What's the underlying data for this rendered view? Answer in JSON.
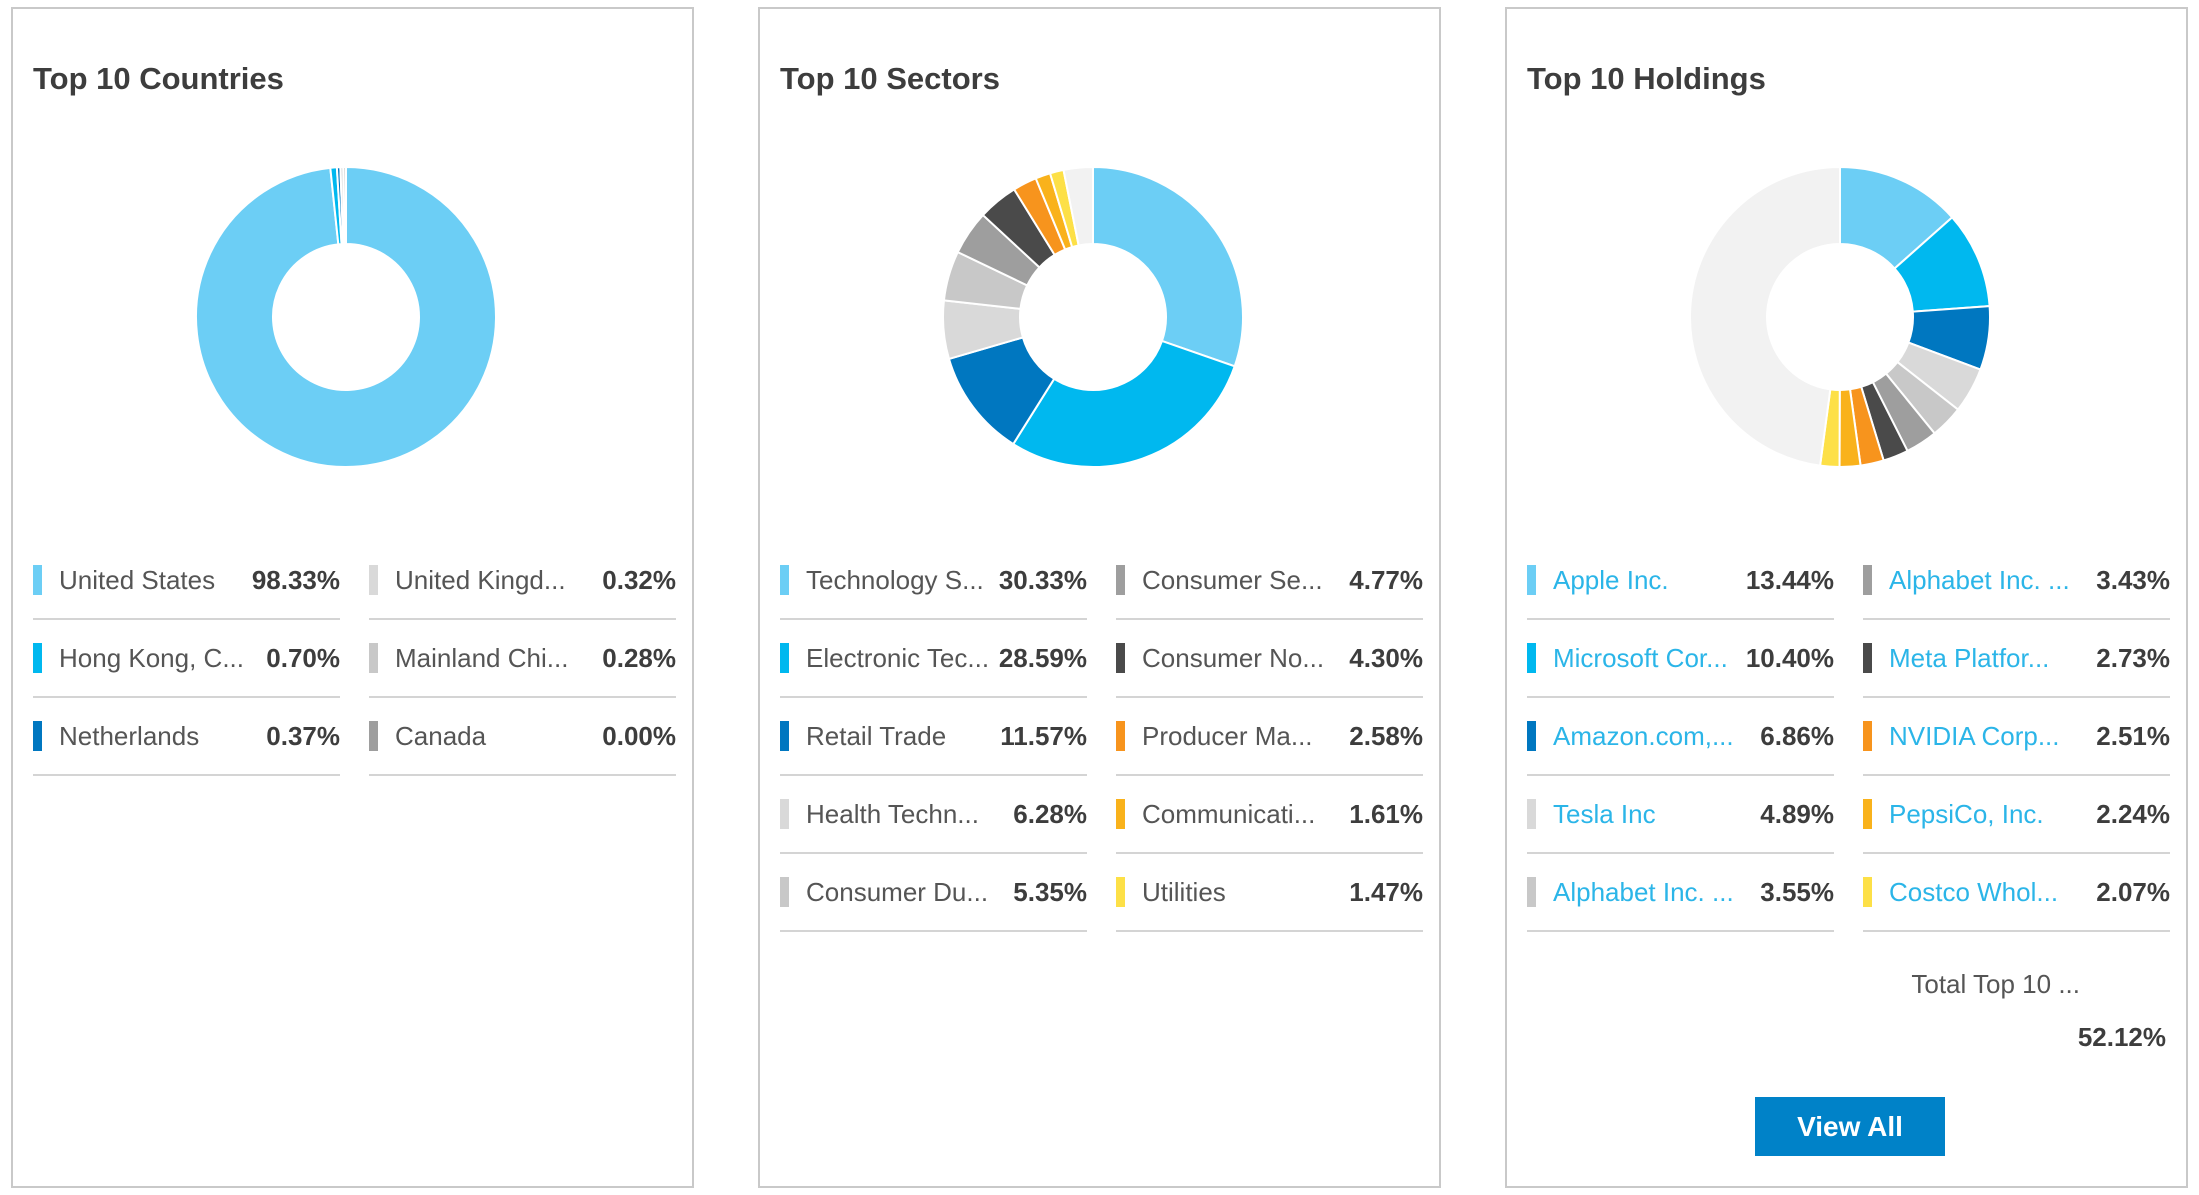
{
  "cards": [
    {
      "title": "Top 10 Countries",
      "items": [
        {
          "label": "United States",
          "value": "98.33%",
          "pct": 98.33,
          "color": "#6ccef5",
          "link": false
        },
        {
          "label": "Hong Kong, C...",
          "value": "0.70%",
          "pct": 0.7,
          "color": "#00b8ef",
          "link": false
        },
        {
          "label": "Netherlands",
          "value": "0.37%",
          "pct": 0.37,
          "color": "#0077c0",
          "link": false
        },
        {
          "label": "United Kingd...",
          "value": "0.32%",
          "pct": 0.32,
          "color": "#d9d9d9",
          "link": false
        },
        {
          "label": "Mainland Chi...",
          "value": "0.28%",
          "pct": 0.28,
          "color": "#c8c8c8",
          "link": false
        },
        {
          "label": "Canada",
          "value": "0.00%",
          "pct": 0.0,
          "color": "#9e9e9e",
          "link": false
        }
      ]
    },
    {
      "title": "Top 10 Sectors",
      "items": [
        {
          "label": "Technology S...",
          "value": "30.33%",
          "pct": 30.33,
          "color": "#6ccef5",
          "link": false
        },
        {
          "label": "Electronic Tec...",
          "value": "28.59%",
          "pct": 28.59,
          "color": "#00b8ef",
          "link": false
        },
        {
          "label": "Retail Trade",
          "value": "11.57%",
          "pct": 11.57,
          "color": "#0077c0",
          "link": false
        },
        {
          "label": "Health Techn...",
          "value": "6.28%",
          "pct": 6.28,
          "color": "#d9d9d9",
          "link": false
        },
        {
          "label": "Consumer Du...",
          "value": "5.35%",
          "pct": 5.35,
          "color": "#c8c8c8",
          "link": false
        },
        {
          "label": "Consumer Se...",
          "value": "4.77%",
          "pct": 4.77,
          "color": "#9e9e9e",
          "link": false
        },
        {
          "label": "Consumer No...",
          "value": "4.30%",
          "pct": 4.3,
          "color": "#4a4a4a",
          "link": false
        },
        {
          "label": "Producer Ma...",
          "value": "2.58%",
          "pct": 2.58,
          "color": "#f7941d",
          "link": false
        },
        {
          "label": "Communicati...",
          "value": "1.61%",
          "pct": 1.61,
          "color": "#f9b21b",
          "link": false
        },
        {
          "label": "Utilities",
          "value": "1.47%",
          "pct": 1.47,
          "color": "#fde047",
          "link": false
        }
      ]
    },
    {
      "title": "Top 10 Holdings",
      "items": [
        {
          "label": "Apple Inc.",
          "value": "13.44%",
          "pct": 13.44,
          "color": "#6ccef5",
          "link": true
        },
        {
          "label": "Microsoft Cor...",
          "value": "10.40%",
          "pct": 10.4,
          "color": "#00b8ef",
          "link": true
        },
        {
          "label": "Amazon.com,...",
          "value": "6.86%",
          "pct": 6.86,
          "color": "#0077c0",
          "link": true
        },
        {
          "label": "Tesla Inc",
          "value": "4.89%",
          "pct": 4.89,
          "color": "#d9d9d9",
          "link": true
        },
        {
          "label": "Alphabet Inc. ...",
          "value": "3.55%",
          "pct": 3.55,
          "color": "#c8c8c8",
          "link": true
        },
        {
          "label": "Alphabet Inc. ...",
          "value": "3.43%",
          "pct": 3.43,
          "color": "#9e9e9e",
          "link": true
        },
        {
          "label": "Meta Platfor...",
          "value": "2.73%",
          "pct": 2.73,
          "color": "#4a4a4a",
          "link": true
        },
        {
          "label": "NVIDIA Corp...",
          "value": "2.51%",
          "pct": 2.51,
          "color": "#f7941d",
          "link": true
        },
        {
          "label": "PepsiCo, Inc.",
          "value": "2.24%",
          "pct": 2.24,
          "color": "#f9b21b",
          "link": true
        },
        {
          "label": "Costco Whol...",
          "value": "2.07%",
          "pct": 2.07,
          "color": "#fde047",
          "link": true
        }
      ],
      "total_label": "Total Top 10 ...",
      "total_value": "52.12%",
      "button_label": "View All"
    }
  ],
  "remainder_color": "#f2f2f2"
}
